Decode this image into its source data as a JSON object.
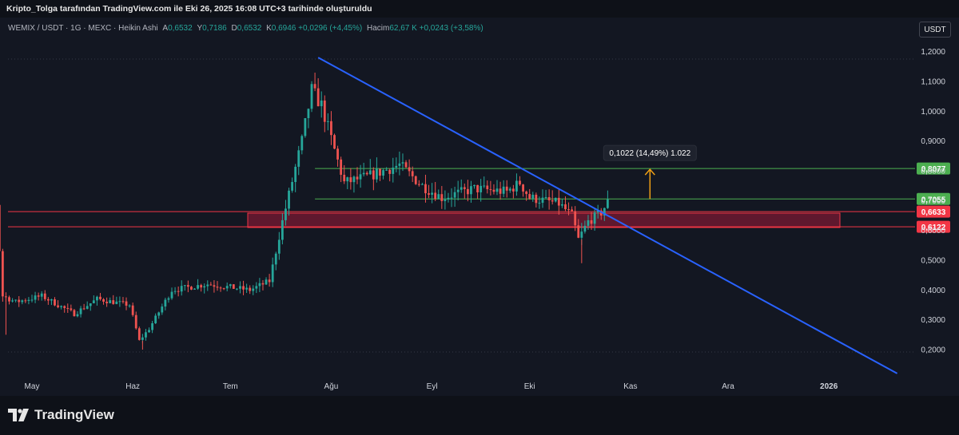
{
  "header": {
    "credit": "Kripto_Tolga tarafından TradingView.com ile Eki 26, 2025 16:08 UTC+3 tarihinde oluşturuldu"
  },
  "legend": {
    "symbol": "WEMIX / USDT · 1G · MEXC · Heikin Ashi",
    "open_label": "A",
    "open": "0,6532",
    "high_label": "Y",
    "high": "0,7186",
    "low_label": "D",
    "low": "0,6532",
    "close_label": "K",
    "close": "0,6946",
    "change": "+0,0296 (+4,45%)",
    "volume_label": "Hacim",
    "volume": "62,67 K",
    "volume_change": "+0,0243 (+3,58%)"
  },
  "unit_button": "USDT",
  "brand": {
    "name": "TradingView",
    "icon": "tradingview-logo-icon"
  },
  "colors": {
    "background": "#131722",
    "up": "#26a69a",
    "down": "#ef5350",
    "trendline": "#2962ff",
    "level": "#4caf50",
    "zone": "#8b1f3a",
    "arrow": "#f0a015"
  },
  "chart_data": {
    "type": "candlestick",
    "series_type": "Heikin Ashi",
    "y_axis_ticks": [
      "1,2000",
      "1,1000",
      "1,0000",
      "0,9000",
      "0,8000",
      "0,7000",
      "0,6000",
      "0,5000",
      "0,4000",
      "0,3000",
      "0,2000"
    ],
    "x_axis_ticks": [
      "May",
      "Haz",
      "Tem",
      "Ağu",
      "Eyl",
      "Eki",
      "Kas",
      "Ara",
      "2026"
    ],
    "ylim": [
      0.16,
      1.22
    ],
    "price_levels": [
      {
        "label": "0,8077",
        "value": 0.8077,
        "color": "#4caf50"
      },
      {
        "label": "0,7055",
        "value": 0.7055,
        "color": "#4caf50"
      },
      {
        "label": "0,6633",
        "value": 0.6633,
        "color": "#f23645"
      },
      {
        "label": "0,6122",
        "value": 0.6122,
        "color": "#f23645"
      }
    ],
    "support_zone": {
      "top": 0.6633,
      "bottom": 0.6122,
      "start": "2025-07-10",
      "end": "2025-12-26"
    },
    "trendline": {
      "start": {
        "date": "2025-07-28",
        "price": 1.18
      },
      "end": {
        "date": "2026-01-22",
        "price": 0.12
      }
    },
    "measure": {
      "label": "0,1022 (14,49%) 1.022",
      "from": 0.7055,
      "to": 0.8077,
      "date": "2025-11-07"
    },
    "candles_keypoints": [
      {
        "date": "2025-04-10",
        "price": 0.69
      },
      {
        "date": "2025-04-18",
        "price": 0.74
      },
      {
        "date": "2025-04-21",
        "price": 0.69
      },
      {
        "date": "2025-04-23",
        "price": 0.38
      },
      {
        "date": "2025-04-27",
        "price": 0.36
      },
      {
        "date": "2025-05-05",
        "price": 0.38
      },
      {
        "date": "2025-05-15",
        "price": 0.32
      },
      {
        "date": "2025-05-22",
        "price": 0.37
      },
      {
        "date": "2025-06-01",
        "price": 0.35
      },
      {
        "date": "2025-06-04",
        "price": 0.23
      },
      {
        "date": "2025-06-07",
        "price": 0.27
      },
      {
        "date": "2025-06-14",
        "price": 0.4
      },
      {
        "date": "2025-06-25",
        "price": 0.42
      },
      {
        "date": "2025-07-08",
        "price": 0.4
      },
      {
        "date": "2025-07-14",
        "price": 0.43
      },
      {
        "date": "2025-07-18",
        "price": 0.63
      },
      {
        "date": "2025-07-24",
        "price": 0.9
      },
      {
        "date": "2025-07-27",
        "price": 1.07
      },
      {
        "date": "2025-07-30",
        "price": 1.02
      },
      {
        "date": "2025-08-03",
        "price": 0.87
      },
      {
        "date": "2025-08-06",
        "price": 0.76
      },
      {
        "date": "2025-08-13",
        "price": 0.78
      },
      {
        "date": "2025-08-23",
        "price": 0.82
      },
      {
        "date": "2025-08-30",
        "price": 0.75
      },
      {
        "date": "2025-09-05",
        "price": 0.71
      },
      {
        "date": "2025-09-15",
        "price": 0.74
      },
      {
        "date": "2025-09-25",
        "price": 0.73
      },
      {
        "date": "2025-09-29",
        "price": 0.76
      },
      {
        "date": "2025-10-02",
        "price": 0.71
      },
      {
        "date": "2025-10-11",
        "price": 0.69
      },
      {
        "date": "2025-10-15",
        "price": 0.65
      },
      {
        "date": "2025-10-17",
        "price": 0.57
      },
      {
        "date": "2025-10-20",
        "price": 0.63
      },
      {
        "date": "2025-10-24",
        "price": 0.66
      },
      {
        "date": "2025-10-26",
        "price": 0.6946
      }
    ]
  }
}
